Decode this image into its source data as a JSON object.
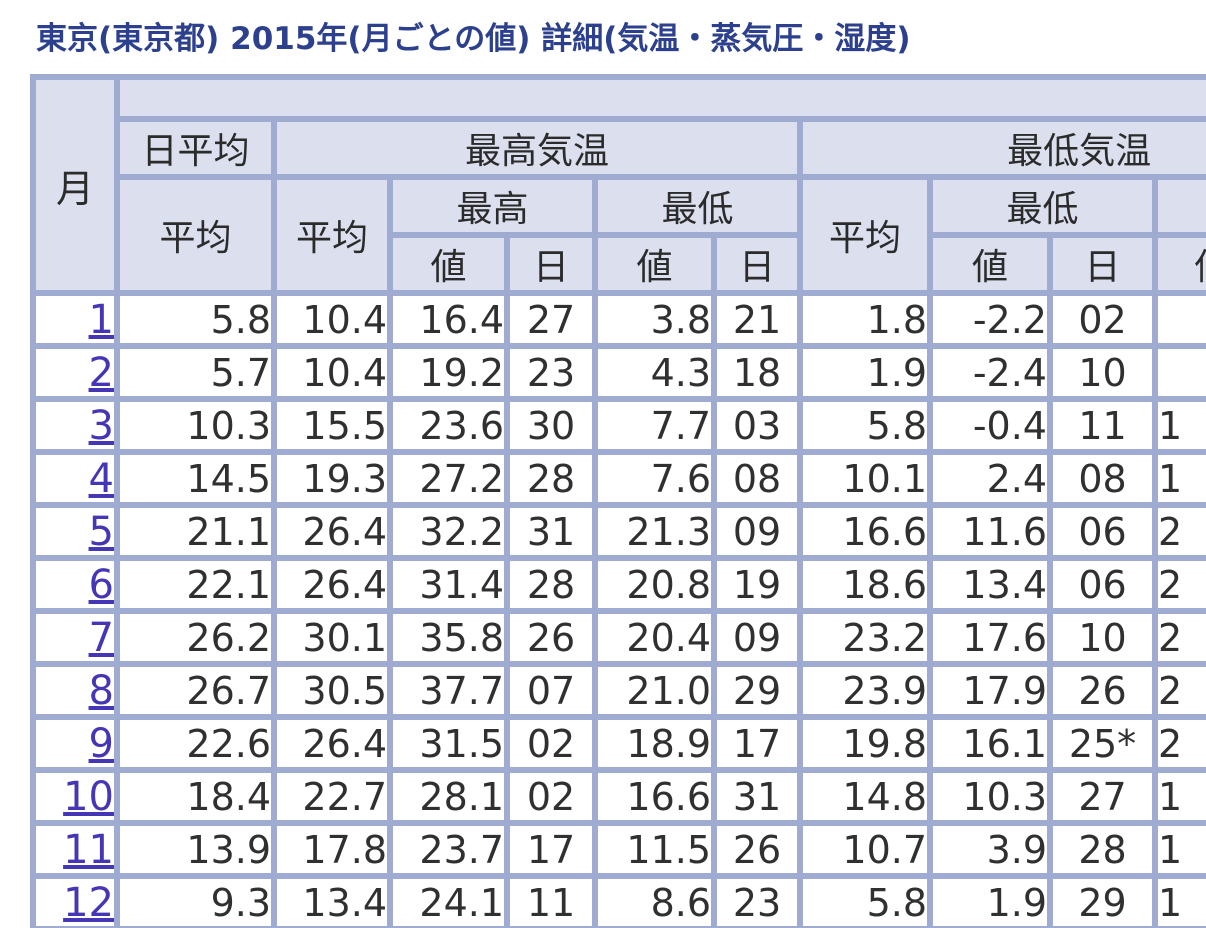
{
  "page": {
    "title": "東京(東京都) 2015年(月ごとの値)  詳細(気温・蒸気圧・湿度)"
  },
  "colors": {
    "title_text": "#2C408E",
    "header_background": "#DBDFEE",
    "grid_border": "#A0ABD1",
    "data_text": "#303030",
    "month_link": "#4436B4",
    "cell_background": "#FFFFFF"
  },
  "table": {
    "headers": {
      "month": "月",
      "daily_average_group": "日平均",
      "max_temp_group": "最高気温",
      "min_temp_group": "最低気温",
      "average": "平均",
      "highest": "最高",
      "lowest": "最低",
      "value": "値",
      "day": "日"
    },
    "rows": [
      {
        "month": "1",
        "daily_avg": "5.8",
        "max_avg": "10.4",
        "max_high_value": "16.4",
        "max_high_day": "27",
        "max_low_value": "3.8",
        "max_low_day": "21",
        "min_avg": "1.8",
        "min_low_value": "-2.2",
        "min_low_day": "02",
        "min_high_value_partial": ""
      },
      {
        "month": "2",
        "daily_avg": "5.7",
        "max_avg": "10.4",
        "max_high_value": "19.2",
        "max_high_day": "23",
        "max_low_value": "4.3",
        "max_low_day": "18",
        "min_avg": "1.9",
        "min_low_value": "-2.4",
        "min_low_day": "10",
        "min_high_value_partial": ""
      },
      {
        "month": "3",
        "daily_avg": "10.3",
        "max_avg": "15.5",
        "max_high_value": "23.6",
        "max_high_day": "30",
        "max_low_value": "7.7",
        "max_low_day": "03",
        "min_avg": "5.8",
        "min_low_value": "-0.4",
        "min_low_day": "11",
        "min_high_value_partial": "1"
      },
      {
        "month": "4",
        "daily_avg": "14.5",
        "max_avg": "19.3",
        "max_high_value": "27.2",
        "max_high_day": "28",
        "max_low_value": "7.6",
        "max_low_day": "08",
        "min_avg": "10.1",
        "min_low_value": "2.4",
        "min_low_day": "08",
        "min_high_value_partial": "1"
      },
      {
        "month": "5",
        "daily_avg": "21.1",
        "max_avg": "26.4",
        "max_high_value": "32.2",
        "max_high_day": "31",
        "max_low_value": "21.3",
        "max_low_day": "09",
        "min_avg": "16.6",
        "min_low_value": "11.6",
        "min_low_day": "06",
        "min_high_value_partial": "2"
      },
      {
        "month": "6",
        "daily_avg": "22.1",
        "max_avg": "26.4",
        "max_high_value": "31.4",
        "max_high_day": "28",
        "max_low_value": "20.8",
        "max_low_day": "19",
        "min_avg": "18.6",
        "min_low_value": "13.4",
        "min_low_day": "06",
        "min_high_value_partial": "2"
      },
      {
        "month": "7",
        "daily_avg": "26.2",
        "max_avg": "30.1",
        "max_high_value": "35.8",
        "max_high_day": "26",
        "max_low_value": "20.4",
        "max_low_day": "09",
        "min_avg": "23.2",
        "min_low_value": "17.6",
        "min_low_day": "10",
        "min_high_value_partial": "2"
      },
      {
        "month": "8",
        "daily_avg": "26.7",
        "max_avg": "30.5",
        "max_high_value": "37.7",
        "max_high_day": "07",
        "max_low_value": "21.0",
        "max_low_day": "29",
        "min_avg": "23.9",
        "min_low_value": "17.9",
        "min_low_day": "26",
        "min_high_value_partial": "2"
      },
      {
        "month": "9",
        "daily_avg": "22.6",
        "max_avg": "26.4",
        "max_high_value": "31.5",
        "max_high_day": "02",
        "max_low_value": "18.9",
        "max_low_day": "17",
        "min_avg": "19.8",
        "min_low_value": "16.1",
        "min_low_day": "25*",
        "min_high_value_partial": "2"
      },
      {
        "month": "10",
        "daily_avg": "18.4",
        "max_avg": "22.7",
        "max_high_value": "28.1",
        "max_high_day": "02",
        "max_low_value": "16.6",
        "max_low_day": "31",
        "min_avg": "14.8",
        "min_low_value": "10.3",
        "min_low_day": "27",
        "min_high_value_partial": "1"
      },
      {
        "month": "11",
        "daily_avg": "13.9",
        "max_avg": "17.8",
        "max_high_value": "23.7",
        "max_high_day": "17",
        "max_low_value": "11.5",
        "max_low_day": "26",
        "min_avg": "10.7",
        "min_low_value": "3.9",
        "min_low_day": "28",
        "min_high_value_partial": "1"
      },
      {
        "month": "12",
        "daily_avg": "9.3",
        "max_avg": "13.4",
        "max_high_value": "24.1",
        "max_high_day": "11",
        "max_low_value": "8.6",
        "max_low_day": "23",
        "min_avg": "5.8",
        "min_low_value": "1.9",
        "min_low_day": "29",
        "min_high_value_partial": "1"
      }
    ]
  }
}
